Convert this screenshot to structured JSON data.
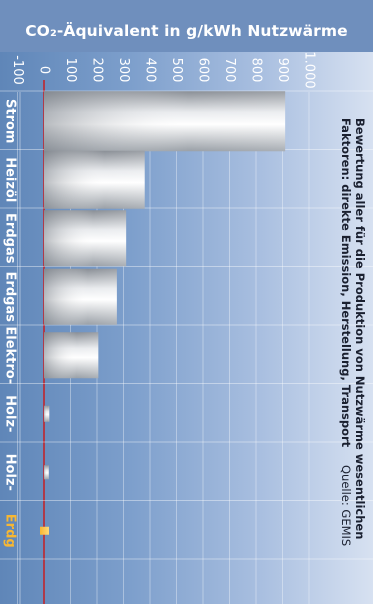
{
  "chart_data": {
    "type": "bar",
    "orientation": "horizontal-bars-rotated",
    "title": "CO₂-Äquivalent in g/kWh Nutzwärme",
    "xlabel": "",
    "ylabel": "",
    "xlim": [
      -100,
      1000
    ],
    "tick_values": [
      -100,
      0,
      100,
      200,
      300,
      400,
      500,
      600,
      700,
      800,
      900,
      1000
    ],
    "tick_labels": [
      "-100",
      "0",
      "100",
      "200",
      "300",
      "400",
      "500",
      "600",
      "700",
      "800",
      "900",
      "1.000"
    ],
    "categories": [
      "Strom",
      "Heizöl",
      "Erdgas",
      "Erdgas",
      "Elektro-",
      "Holz-",
      "Holz-",
      "Erdg"
    ],
    "values": [
      910,
      380,
      310,
      275,
      205,
      20,
      18,
      0
    ],
    "highlight_index": 7,
    "grid": true,
    "zero_line_color": "#c0262d",
    "annotation_lines": [
      "Bewertung aller für die Produktion von Nutzwärme wesentlichen",
      "Faktoren: direkte Emission, Herstellung, Transport"
    ],
    "source": "Quelle: GEMIS"
  }
}
